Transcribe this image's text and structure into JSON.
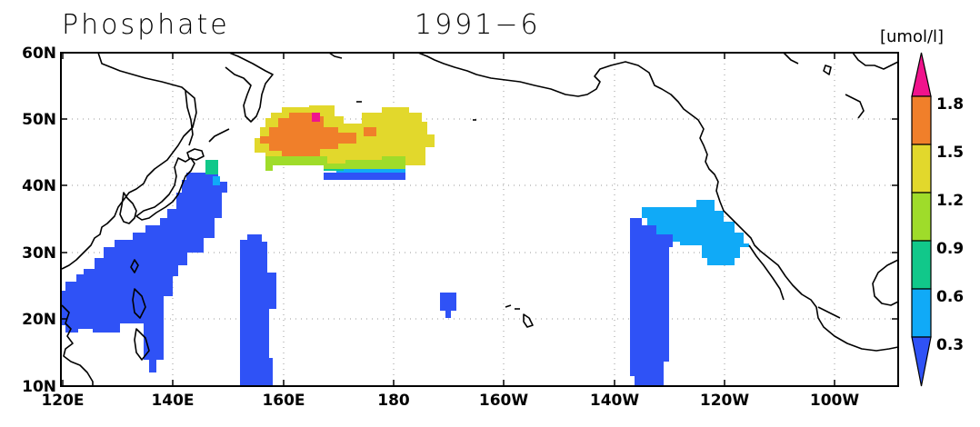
{
  "title": {
    "variable": "Phosphate",
    "period": "1991−6"
  },
  "colorbar": {
    "unit": "[umol/l]",
    "levels": [
      "0.3",
      "0.6",
      "0.9",
      "1.2",
      "1.5",
      "1.8"
    ],
    "colors": [
      "#2f52f6",
      "#10aaf7",
      "#11c88a",
      "#9fdc2a",
      "#e2d82c",
      "#f07f2a",
      "#f0138c"
    ]
  },
  "map": {
    "lon_range": [
      "120E",
      "90W"
    ],
    "lat_range": [
      "10N",
      "60N"
    ],
    "x_ticks": [
      "120E",
      "140E",
      "160E",
      "180",
      "160W",
      "140W",
      "120W",
      "100W"
    ],
    "y_ticks": [
      "10N",
      "20N",
      "30N",
      "40N",
      "50N",
      "60N"
    ]
  }
}
